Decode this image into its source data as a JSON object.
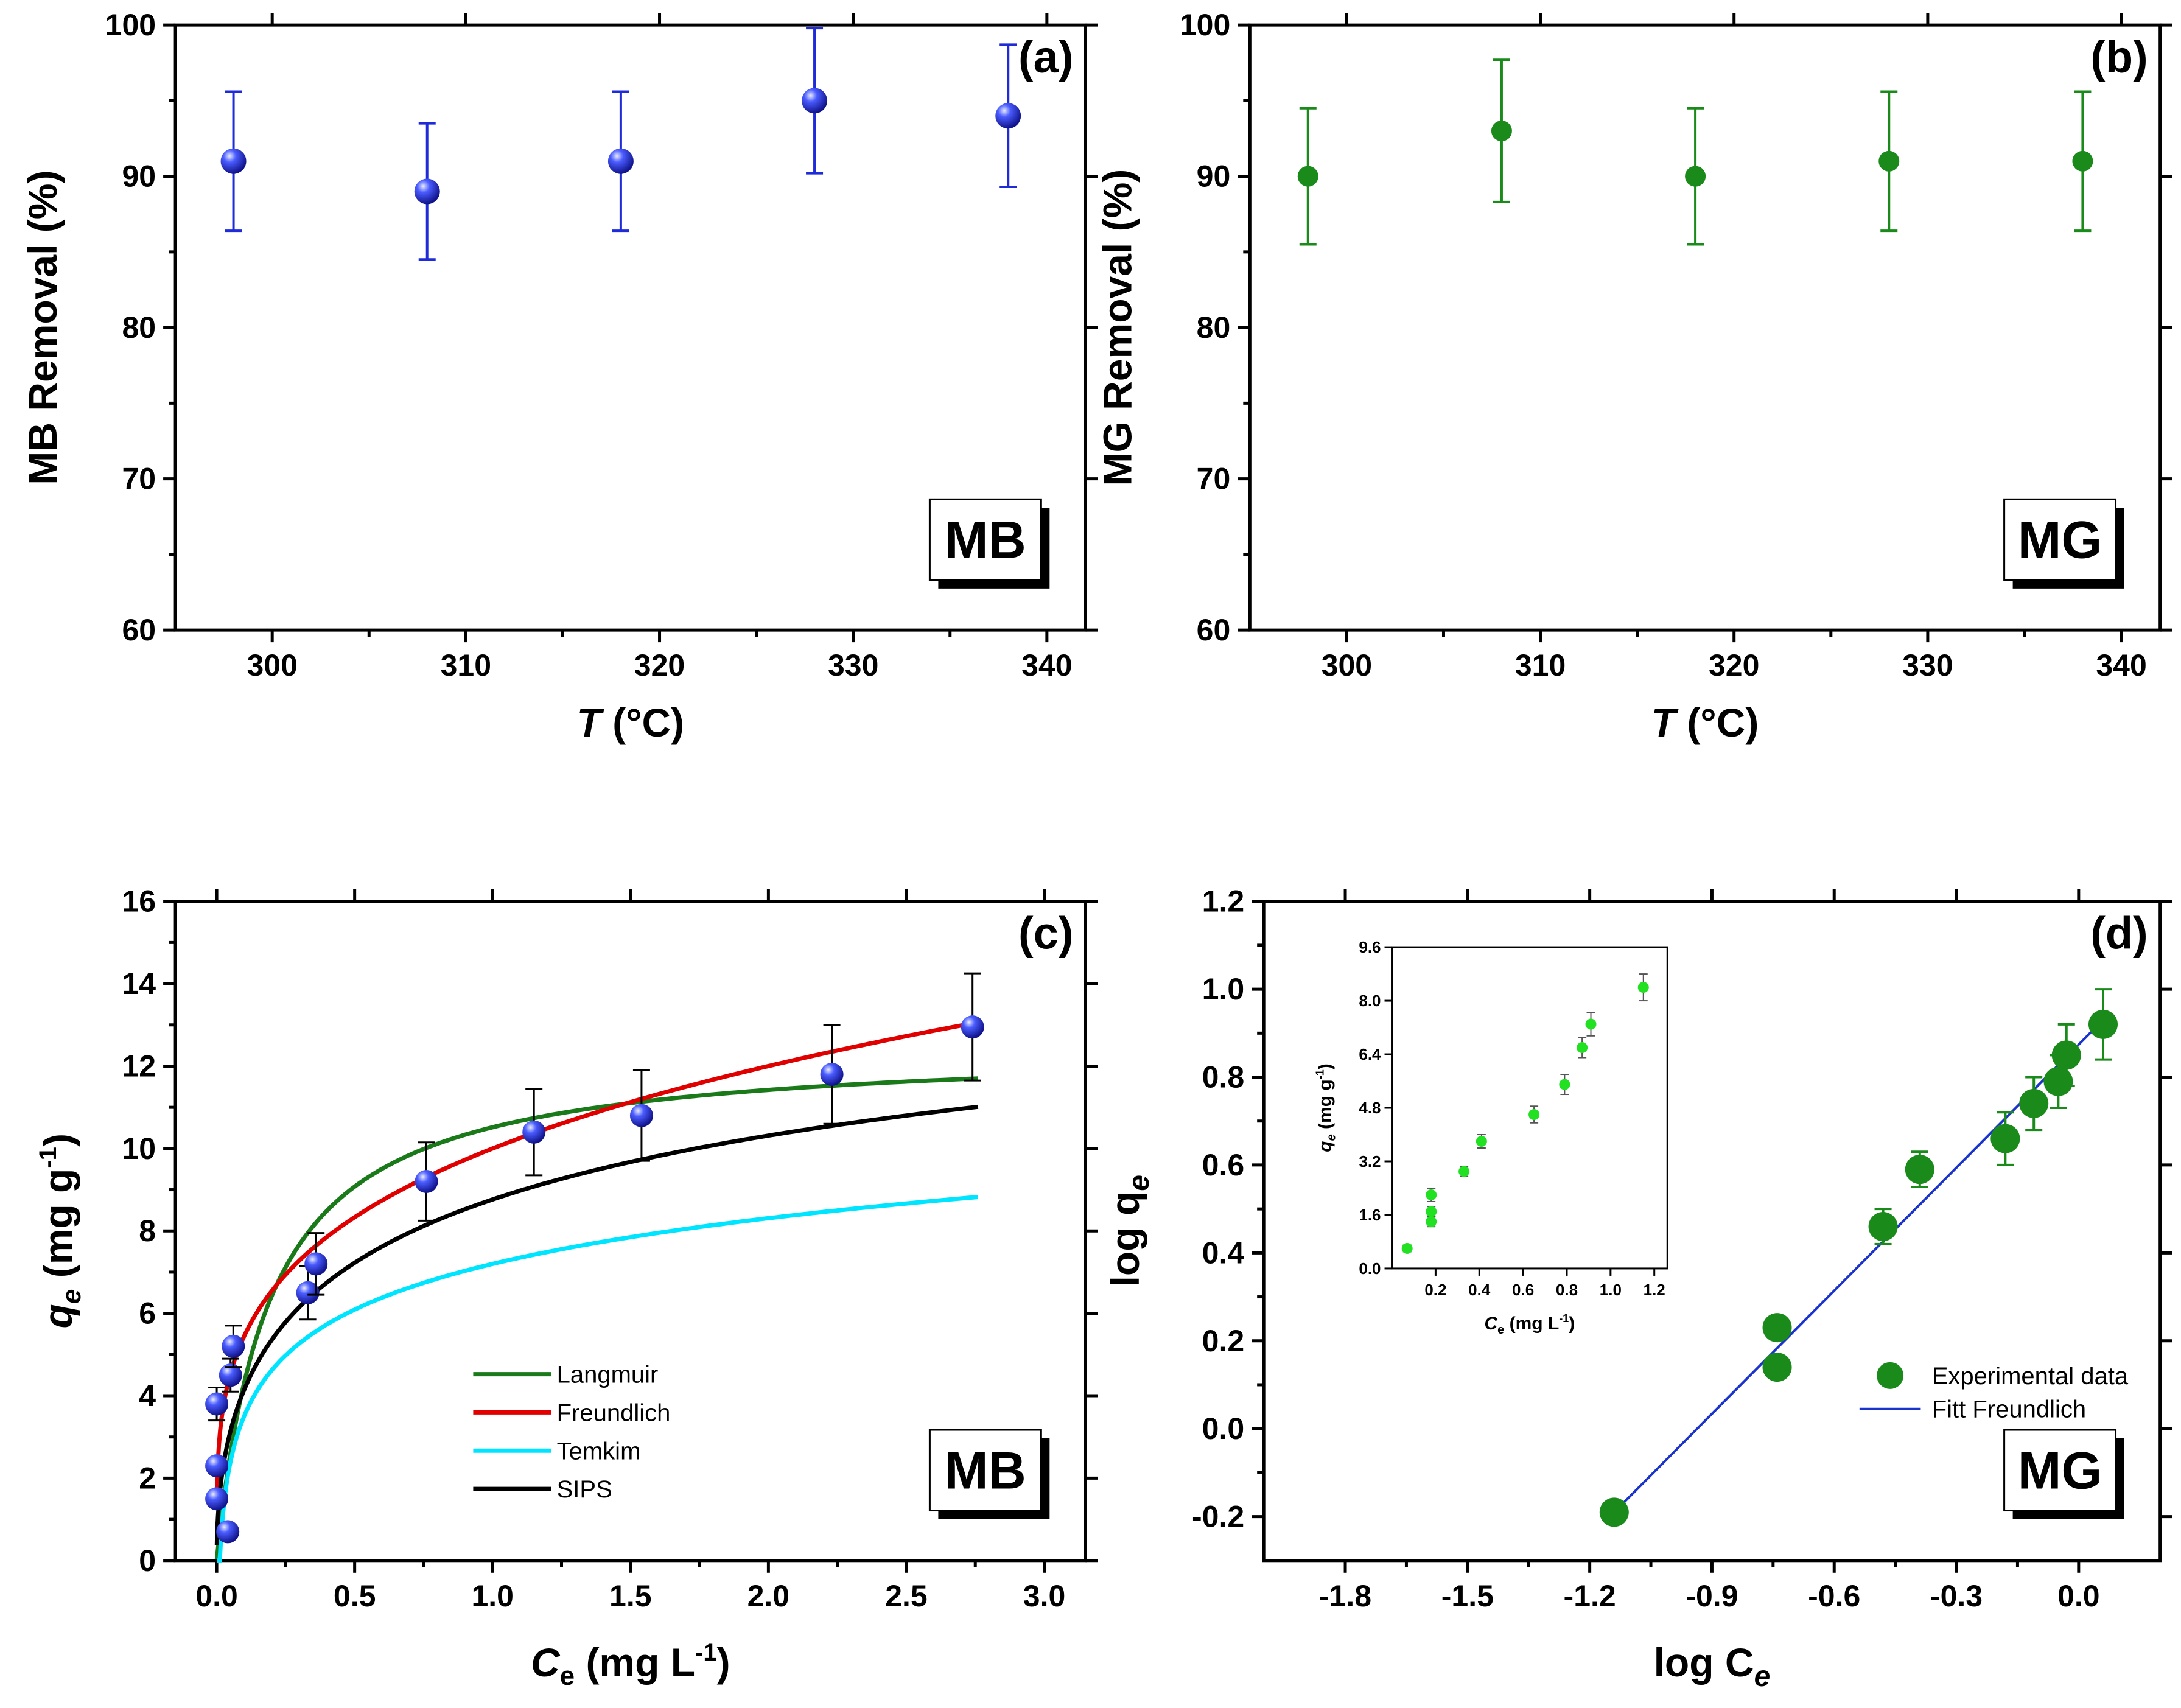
{
  "chart_data": [
    {
      "id": "a",
      "type": "scatter",
      "panel_label": "(a)",
      "tag": "MB",
      "xlabel_italic": "T",
      "xlabel_rest": " (°C)",
      "ylabel": "MB Removal (%)",
      "xlim": [
        295,
        342
      ],
      "ylim": [
        60,
        100
      ],
      "xticks": [
        300,
        310,
        320,
        330,
        340
      ],
      "yticks": [
        60,
        70,
        80,
        90,
        100
      ],
      "marker_color": "#1f2bd8",
      "series": [
        {
          "name": "MB",
          "x": [
            298,
            308,
            318,
            328,
            338
          ],
          "y": [
            91,
            89,
            91,
            95,
            94
          ],
          "err": [
            4.6,
            4.5,
            4.6,
            4.8,
            4.7
          ]
        }
      ]
    },
    {
      "id": "b",
      "type": "scatter",
      "panel_label": "(b)",
      "tag": "MG",
      "xlabel_italic": "T",
      "xlabel_rest": " (°C)",
      "ylabel": "MG Removal (%)",
      "xlim": [
        295,
        342
      ],
      "ylim": [
        60,
        100
      ],
      "xticks": [
        300,
        310,
        320,
        330,
        340
      ],
      "yticks": [
        60,
        70,
        80,
        90,
        100
      ],
      "marker_color": "#1a8a1a",
      "series": [
        {
          "name": "MG",
          "x": [
            298,
            308,
            318,
            328,
            338
          ],
          "y": [
            90,
            93,
            90,
            91,
            91
          ],
          "err": [
            4.5,
            4.7,
            4.5,
            4.6,
            4.6
          ]
        }
      ]
    },
    {
      "id": "c",
      "type": "scatter",
      "panel_label": "(c)",
      "tag": "MB",
      "xlabel_italic": "C",
      "xlabel_sub": "e",
      "xlabel_rest": " (mg L",
      "xlabel_sup": "-1",
      "xlabel_end": ")",
      "ylabel_italic": "q",
      "ylabel_sub": "e",
      "ylabel_rest": " (mg g",
      "ylabel_sup": "-1",
      "ylabel_end": ")",
      "xlim": [
        -0.15,
        3.15
      ],
      "ylim": [
        0,
        16
      ],
      "xticks": [
        0.0,
        0.5,
        1.0,
        1.5,
        2.0,
        2.5,
        3.0
      ],
      "xtick_labels": [
        "0.0",
        "0.5",
        "1.0",
        "1.5",
        "2.0",
        "2.5",
        "3.0"
      ],
      "yticks": [
        0,
        2,
        4,
        6,
        8,
        10,
        12,
        14,
        16
      ],
      "marker_color": "#1f2bd8",
      "points": {
        "x": [
          0.0,
          0.0,
          0.0,
          0.04,
          0.05,
          0.06,
          0.33,
          0.36,
          0.76,
          1.15,
          1.54,
          2.23,
          2.74
        ],
        "y": [
          1.5,
          2.3,
          3.8,
          0.7,
          4.5,
          5.2,
          6.5,
          7.2,
          9.2,
          10.4,
          10.8,
          11.8,
          12.95
        ],
        "err": [
          0.0,
          0.0,
          0.4,
          0.0,
          0.4,
          0.5,
          0.65,
          0.75,
          0.95,
          1.05,
          1.1,
          1.2,
          1.3
        ]
      },
      "fits": [
        {
          "name": "Langmuir",
          "color": "#1a7a1a",
          "model": "langmuir",
          "params": {
            "qm": 12.5,
            "KL": 5.3
          }
        },
        {
          "name": "Freundlich",
          "color": "#e00000",
          "model": "freundlich",
          "params": {
            "KF": 10.0,
            "n": 3.8
          }
        },
        {
          "name": "Temkim",
          "color": "#00e5ff",
          "model": "temkin",
          "params": {
            "B": 1.6,
            "KT": 90
          }
        },
        {
          "name": "SIPS",
          "color": "#000000",
          "model": "sips",
          "params": {
            "qm": 18.0,
            "Ks": 0.9,
            "n": 0.5
          }
        }
      ]
    },
    {
      "id": "d",
      "type": "scatter",
      "panel_label": "(d)",
      "tag": "MG",
      "xlabel": "log C",
      "xlabel_sub": "e",
      "ylabel": "log q",
      "ylabel_sub": "e",
      "xlim": [
        -2.0,
        0.2
      ],
      "ylim": [
        -0.3,
        1.2
      ],
      "xticks": [
        -1.8,
        -1.5,
        -1.2,
        -0.9,
        -0.6,
        -0.3,
        0.0
      ],
      "xtick_labels": [
        "-1.8",
        "-1.5",
        "-1.2",
        "-0.9",
        "-0.6",
        "-0.3",
        "0.0"
      ],
      "yticks": [
        -0.2,
        0.0,
        0.2,
        0.4,
        0.6,
        0.8,
        1.0,
        1.2
      ],
      "ytick_labels": [
        "-0.2",
        "0.0",
        "0.2",
        "0.4",
        "0.6",
        "0.8",
        "1.0",
        "1.2"
      ],
      "marker_color": "#1a8a1a",
      "points": {
        "x": [
          -1.14,
          -0.74,
          -0.74,
          -0.48,
          -0.39,
          -0.18,
          -0.11,
          -0.05,
          -0.03,
          0.06
        ],
        "y": [
          -0.19,
          0.14,
          0.23,
          0.46,
          0.59,
          0.66,
          0.74,
          0.79,
          0.85,
          0.92
        ],
        "err": [
          0.0,
          0.0,
          0.0,
          0.04,
          0.04,
          0.06,
          0.06,
          0.06,
          0.07,
          0.08
        ]
      },
      "fit": {
        "name": "Fitt Freundlich",
        "color": "#1a33cc",
        "x": [
          -1.14,
          0.06
        ],
        "y": [
          -0.19,
          0.93
        ]
      },
      "legend": [
        "Experimental data",
        "Fitt Freundlich"
      ],
      "inset": {
        "xlabel_italic": "C",
        "xlabel_sub": "e",
        "xlabel_rest": " (mg L",
        "xlabel_sup": "-1",
        "xlabel_end": ")",
        "ylabel_italic": "q",
        "ylabel_sub": "e",
        "ylabel_rest": " (mg g",
        "ylabel_sup": "-1",
        "ylabel_end": ")",
        "xlim": [
          0.0,
          1.26
        ],
        "ylim": [
          0.0,
          9.6
        ],
        "xticks": [
          0.2,
          0.4,
          0.6,
          0.8,
          1.0,
          1.2
        ],
        "xtick_labels": [
          "0.2",
          "0.4",
          "0.6",
          "0.8",
          "1.0",
          "1.2"
        ],
        "yticks": [
          0.0,
          1.6,
          3.2,
          4.8,
          6.4,
          8.0,
          9.6
        ],
        "ytick_labels": [
          "0.0",
          "1.6",
          "3.2",
          "4.8",
          "6.4",
          "8.0",
          "9.6"
        ],
        "marker_color": "#22e022",
        "x": [
          0.07,
          0.18,
          0.18,
          0.18,
          0.33,
          0.41,
          0.65,
          0.79,
          0.87,
          0.91,
          1.15
        ],
        "y": [
          0.6,
          1.4,
          1.7,
          2.2,
          2.9,
          3.8,
          4.6,
          5.5,
          6.6,
          7.3,
          8.4
        ],
        "err": [
          0.1,
          0.15,
          0.15,
          0.2,
          0.15,
          0.2,
          0.25,
          0.3,
          0.3,
          0.35,
          0.4
        ]
      }
    }
  ]
}
